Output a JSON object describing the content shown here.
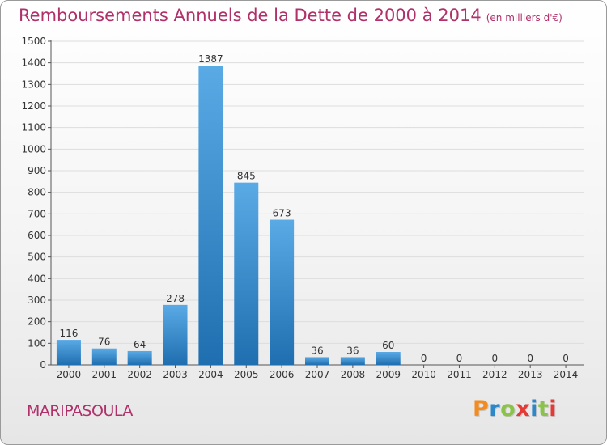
{
  "title": "Remboursements Annuels de la Dette de 2000 à 2014",
  "unit_note": "(en milliers d'€)",
  "commune": "MARIPASOULA",
  "logo": {
    "letters": [
      "P",
      "r",
      "o",
      "x",
      "i",
      "t",
      "i"
    ],
    "colors": [
      "#f28c1e",
      "#2e88c8",
      "#8bc34a",
      "#e53935",
      "#2e88c8",
      "#8bc34a",
      "#e53935"
    ]
  },
  "colors": {
    "title": "#b0306a",
    "bar_light": "#5aaae6",
    "bar_dark": "#1f6fb0",
    "grid": "#dddddd"
  },
  "chart_data": {
    "type": "bar",
    "title": "Remboursements Annuels de la Dette de 2000 à 2014",
    "subtitle": "(en milliers d'€)",
    "xlabel": "",
    "ylabel": "",
    "ylim": [
      0,
      1500
    ],
    "yticks": [
      0,
      100,
      200,
      300,
      400,
      500,
      600,
      700,
      800,
      900,
      1000,
      1100,
      1200,
      1300,
      1400,
      1500
    ],
    "grid": true,
    "categories": [
      "2000",
      "2001",
      "2002",
      "2003",
      "2004",
      "2005",
      "2006",
      "2007",
      "2008",
      "2009",
      "2010",
      "2011",
      "2012",
      "2013",
      "2014"
    ],
    "values": [
      116,
      76,
      64,
      278,
      1387,
      845,
      673,
      36,
      36,
      60,
      0,
      0,
      0,
      0,
      0
    ]
  }
}
